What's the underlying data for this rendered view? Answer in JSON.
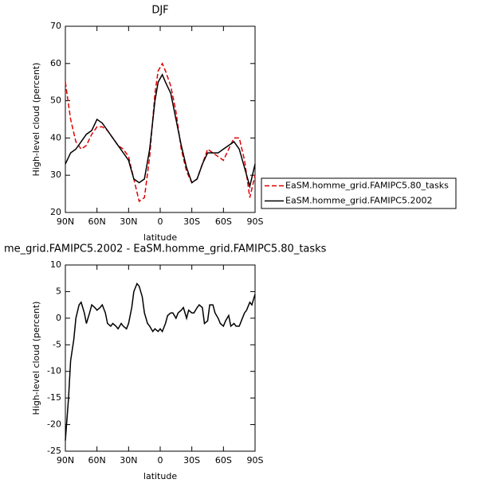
{
  "chart_data": [
    {
      "type": "line",
      "title": "DJF",
      "xlabel": "latitude",
      "ylabel": "High-level cloud (percent)",
      "x": [
        90,
        85,
        80,
        75,
        70,
        65,
        60,
        55,
        50,
        45,
        40,
        35,
        30,
        25,
        20,
        15,
        10,
        5,
        2,
        0,
        -2,
        -5,
        -10,
        -15,
        -20,
        -25,
        -30,
        -35,
        -40,
        -45,
        -50,
        -55,
        -60,
        -65,
        -70,
        -75,
        -80,
        -85,
        -90
      ],
      "series": [
        {
          "name": "EaSM.homme_grid.FAMIPC5.80_tasks",
          "color": "#e00000",
          "line_style": "dashed",
          "values": [
            55,
            45,
            39,
            37,
            38,
            41,
            43,
            43,
            42,
            40,
            38,
            37,
            35,
            29,
            23,
            24,
            35,
            52,
            58,
            59,
            60,
            58,
            54,
            47,
            37,
            31,
            28,
            29,
            33,
            37,
            36,
            35,
            34,
            37,
            40,
            40,
            34,
            24,
            30
          ]
        },
        {
          "name": "EaSM.homme_grid.FAMIPC5.2002",
          "color": "#000000",
          "line_style": "solid",
          "values": [
            33,
            36,
            37,
            39,
            41,
            42,
            45,
            44,
            42,
            40,
            38,
            36,
            34,
            29,
            28,
            29,
            37,
            50,
            55,
            56,
            57,
            55,
            52,
            45,
            38,
            32,
            28,
            29,
            33,
            36,
            36,
            36,
            37,
            38,
            39,
            37,
            32,
            27,
            33
          ]
        }
      ],
      "xlim": [
        90,
        -90
      ],
      "xticks": [
        {
          "value": 90,
          "label": "90N"
        },
        {
          "value": 60,
          "label": "60N"
        },
        {
          "value": 30,
          "label": "30N"
        },
        0,
        {
          "value": -30,
          "label": "30S"
        },
        {
          "value": -60,
          "label": "60S"
        },
        {
          "value": -90,
          "label": "90S"
        }
      ],
      "ylim": [
        20,
        70
      ],
      "yticks": [
        20,
        30,
        40,
        50,
        60,
        70
      ],
      "legend": "right"
    },
    {
      "type": "line",
      "title": "me_grid.FAMIPC5.2002 - EaSM.homme_grid.FAMIPC5.80_tasks",
      "xlabel": "latitude",
      "ylabel": "High-level cloud (percent)",
      "x": [
        90,
        87,
        85,
        82,
        80,
        77,
        75,
        72,
        70,
        67,
        65,
        62,
        60,
        57,
        55,
        52,
        50,
        47,
        45,
        42,
        40,
        37,
        35,
        32,
        30,
        27,
        25,
        22,
        20,
        17,
        15,
        12,
        10,
        7,
        5,
        2,
        0,
        -2,
        -5,
        -7,
        -10,
        -12,
        -15,
        -17,
        -20,
        -22,
        -25,
        -27,
        -30,
        -32,
        -35,
        -37,
        -40,
        -42,
        -45,
        -47,
        -50,
        -52,
        -55,
        -57,
        -60,
        -62,
        -65,
        -67,
        -70,
        -72,
        -75,
        -77,
        -80,
        -82,
        -85,
        -87,
        -90
      ],
      "series": [
        {
          "color": "#000000",
          "line_style": "solid",
          "values": [
            -23,
            -15,
            -8,
            -4,
            0,
            2.5,
            3,
            1,
            -1,
            1,
            2.5,
            2,
            1.5,
            2,
            2.5,
            1,
            -1,
            -1.5,
            -1,
            -1.5,
            -2,
            -1,
            -1.5,
            -2,
            -1,
            2,
            5,
            6.5,
            6,
            4,
            1,
            -1,
            -1.5,
            -2.5,
            -2,
            -2.5,
            -2,
            -2.5,
            -1,
            0.5,
            1,
            1,
            0,
            1,
            1.5,
            2,
            0,
            1.5,
            1,
            1,
            2,
            2.5,
            2,
            -1,
            -0.5,
            2.5,
            2.5,
            1,
            0,
            -1,
            -1.5,
            -0.5,
            0.5,
            -1.5,
            -1,
            -1.5,
            -1.5,
            -0.5,
            1,
            1.5,
            3,
            2.5,
            4.5
          ]
        }
      ],
      "xlim": [
        90,
        -90
      ],
      "xticks": [
        {
          "value": 90,
          "label": "90N"
        },
        {
          "value": 60,
          "label": "60N"
        },
        {
          "value": 30,
          "label": "30N"
        },
        0,
        {
          "value": -30,
          "label": "30S"
        },
        {
          "value": -60,
          "label": "60S"
        },
        {
          "value": -90,
          "label": "90S"
        }
      ],
      "ylim": [
        -25,
        10
      ],
      "yticks": [
        -25,
        -20,
        -15,
        -10,
        -5,
        0,
        5,
        10
      ]
    }
  ]
}
